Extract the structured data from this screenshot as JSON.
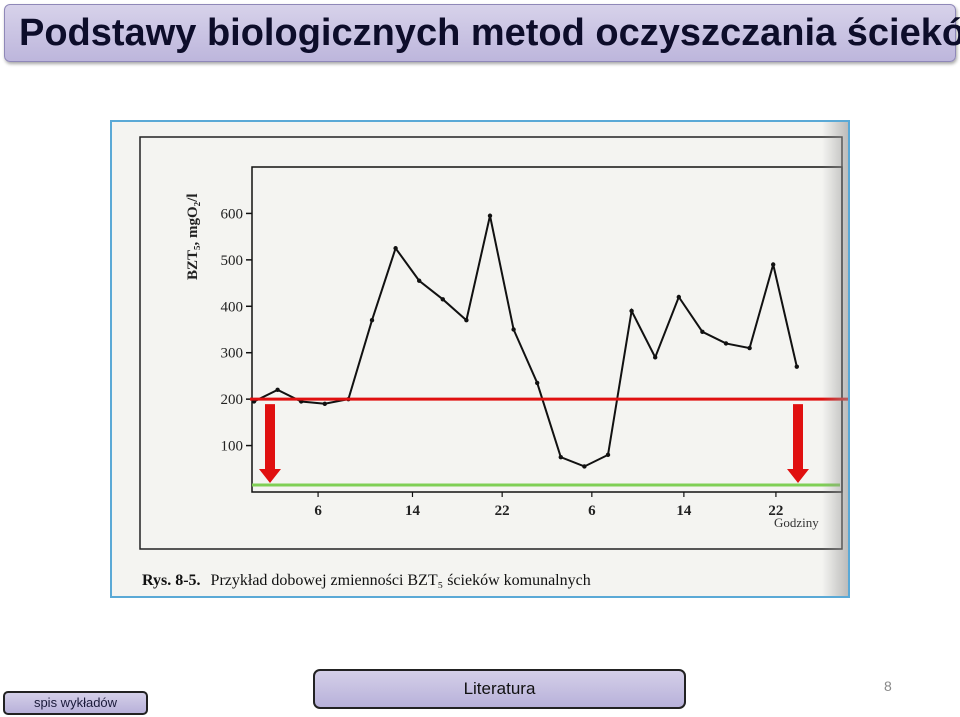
{
  "header": {
    "title": "Podstawy biologicznych metod oczyszczania ścieków"
  },
  "chart_data": {
    "type": "line",
    "ylabel": "BZT₅, mgO₂/l",
    "xlabel": "Godziny",
    "x_ticks": [
      "6",
      "14",
      "22",
      "6",
      "14",
      "22"
    ],
    "y_ticks": [
      "600",
      "500",
      "400",
      "300",
      "200",
      "100"
    ],
    "ylim": [
      0,
      700
    ],
    "grid": false,
    "series": [
      {
        "values": [
          195,
          220,
          195,
          190,
          200,
          370,
          525,
          455,
          415,
          370,
          595,
          350,
          235,
          75,
          55,
          80,
          390,
          290,
          420,
          345,
          320,
          310,
          490,
          270
        ]
      }
    ],
    "reference_lines": {
      "red_level": 200,
      "green_level": 15
    },
    "caption": {
      "prefix": "Rys. 8-5.",
      "text": "Przykład dobowej zmienności BZT₅ ścieków komunalnych"
    }
  },
  "footer": {
    "spis_label": "spis wykładów",
    "literatura_label": "Literatura",
    "page_number": "8"
  },
  "colors": {
    "title_bg": "#c9c3e3",
    "frame": "#5aa9d6",
    "red_line": "#e01010",
    "green_line": "#7fcf55"
  }
}
